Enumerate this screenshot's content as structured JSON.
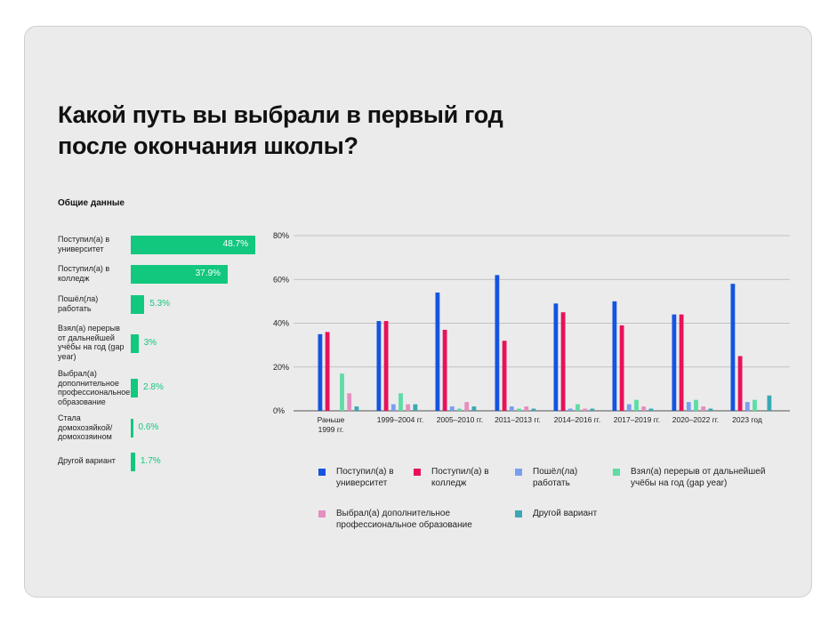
{
  "title": "Какой путь вы выбрали в первый год после окончания школы?",
  "overall": {
    "subtitle": "Общие данные",
    "items": [
      {
        "label": "Поступил(а) в университет",
        "value": 48.7,
        "display": "48.7%"
      },
      {
        "label": "Поступил(а) в колледж",
        "value": 37.9,
        "display": "37.9%"
      },
      {
        "label": "Пошёл(ла) работать",
        "value": 5.3,
        "display": "5.3%"
      },
      {
        "label": "Взял(а) перерыв от дальнейшей учёбы на год (gap year)",
        "value": 3,
        "display": "3%"
      },
      {
        "label": "Выбрал(а) дополнительное профессиональное образование",
        "value": 2.8,
        "display": "2.8%"
      },
      {
        "label": "Стала домохозяйкой/ домохозяином",
        "value": 0.6,
        "display": "0.6%"
      },
      {
        "label": "Другой вариант",
        "value": 1.7,
        "display": "1.7%"
      }
    ]
  },
  "chart_data": [
    {
      "type": "bar",
      "title": "Общие данные",
      "orientation": "horizontal",
      "categories": [
        "Поступил(а) в университет",
        "Поступил(а) в колледж",
        "Пошёл(ла) работать",
        "Взял(а) перерыв от дальнейшей учёбы на год (gap year)",
        "Выбрал(а) дополнительное профессиональное образование",
        "Стала домохозяйкой/ домохозяином",
        "Другой вариант"
      ],
      "values": [
        48.7,
        37.9,
        5.3,
        3,
        2.8,
        0.6,
        1.7
      ],
      "color": "#12c87e"
    },
    {
      "type": "bar",
      "categories": [
        "Раньше 1999 гг.",
        "1999–2004 гг.",
        "2005–2010 гг.",
        "2011–2013 гг.",
        "2014–2016 гг.",
        "2017–2019 гг.",
        "2020–2022 гг.",
        "2023 год"
      ],
      "category_lines": [
        [
          "Раньше",
          "1999 гг."
        ],
        [
          "1999–2004 гг."
        ],
        [
          "2005–2010 гг."
        ],
        [
          "2011–2013 гг."
        ],
        [
          "2014–2016 гг."
        ],
        [
          "2017–2019 гг."
        ],
        [
          "2020–2022 гг."
        ],
        [
          "2023 год"
        ]
      ],
      "ylim": [
        0,
        80
      ],
      "yticks": [
        0,
        20,
        40,
        60,
        80
      ],
      "ytick_labels": [
        "0%",
        "20%",
        "40%",
        "60%",
        "80%"
      ],
      "grid": true,
      "legend_position": "bottom",
      "series": [
        {
          "name": "Поступил(а) в университет",
          "color": "#1454e0",
          "values": [
            35,
            41,
            54,
            62,
            49,
            50,
            44,
            58
          ]
        },
        {
          "name": "Поступил(а) в колледж",
          "color": "#e8115a",
          "values": [
            36,
            41,
            37,
            32,
            45,
            39,
            44,
            25
          ]
        },
        {
          "name": "Пошёл(ла) работать",
          "color": "#7b9ef0",
          "values": [
            0,
            3,
            2,
            2,
            1,
            3,
            4,
            4
          ]
        },
        {
          "name": "Взял(а) перерыв от дальнейшей учёбы на год (gap year)",
          "color": "#5fdca6",
          "values": [
            17,
            8,
            1,
            1,
            3,
            5,
            5,
            5
          ]
        },
        {
          "name": "Выбрал(а) дополнительное профессиональное образование",
          "color": "#e38fbf",
          "values": [
            8,
            3,
            4,
            2,
            1,
            2,
            2,
            0
          ]
        },
        {
          "name": "Другой вариант",
          "color": "#3aa8b5",
          "values": [
            2,
            3,
            2,
            1,
            1,
            1,
            1,
            7
          ]
        }
      ]
    }
  ],
  "legend": [
    {
      "label": "Поступил(а) в университет",
      "color": "#1454e0"
    },
    {
      "label": "Поступил(а) в колледж",
      "color": "#e8115a"
    },
    {
      "label": "Пошёл(ла) работать",
      "color": "#7b9ef0"
    },
    {
      "label": "Взял(а) перерыв от дальнейшей учёбы на год (gap year)",
      "color": "#5fdca6"
    },
    {
      "label": "Выбрал(а) дополнительное профессиональное образование",
      "color": "#e38fbf"
    },
    {
      "label": "Другой вариант",
      "color": "#3aa8b5"
    }
  ],
  "accent_color": "#12c87e"
}
